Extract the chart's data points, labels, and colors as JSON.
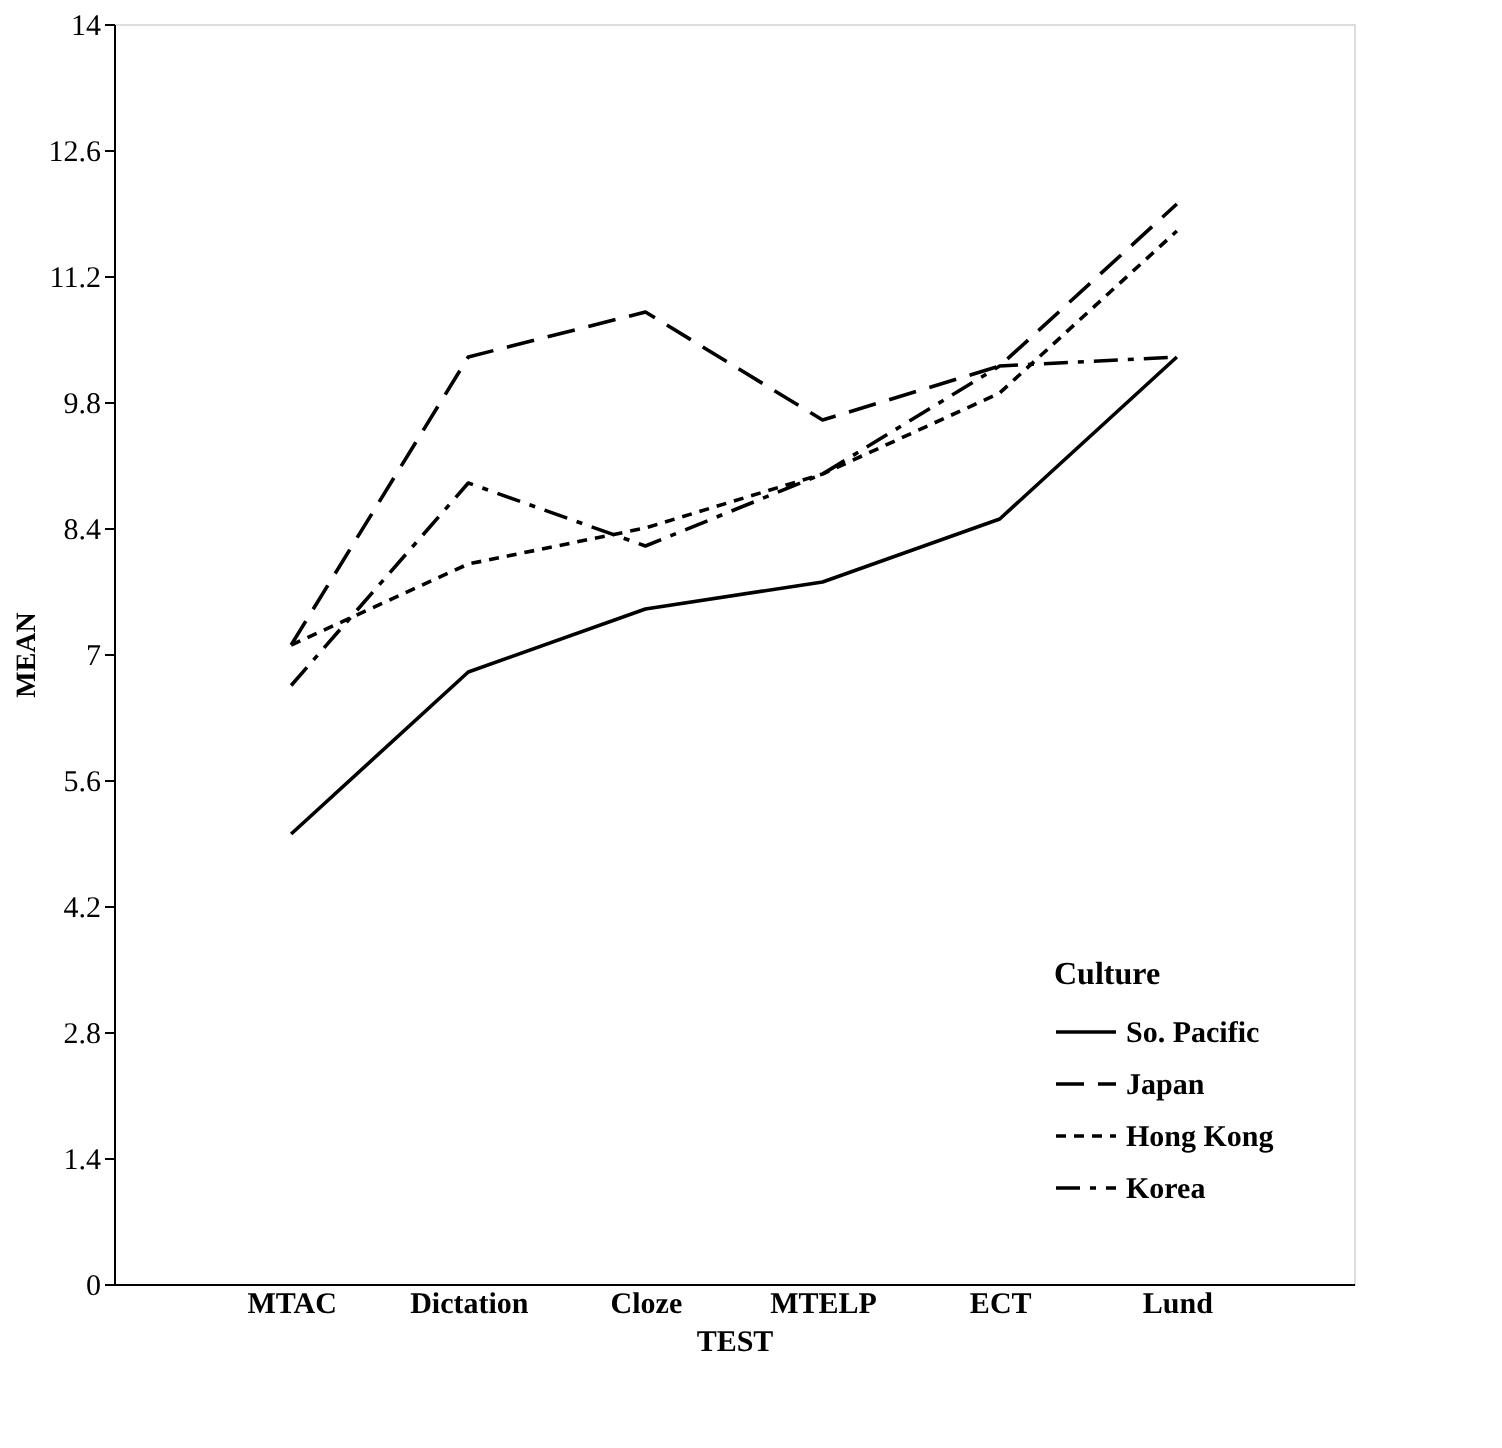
{
  "chart_data": {
    "type": "line",
    "xlabel": "TEST",
    "ylabel": "MEAN",
    "legend_title": "Culture",
    "categories": [
      "MTAC",
      "Dictation",
      "Cloze",
      "MTELP",
      "ECT",
      "Lund"
    ],
    "ylim": [
      0,
      14
    ],
    "yticks": [
      0,
      1.4,
      2.8,
      4.2,
      5.6,
      7,
      8.4,
      9.8,
      11.2,
      12.6,
      14
    ],
    "grid": false,
    "legend": "bottom right",
    "marker": "none",
    "series": [
      {
        "name": "So. Pacific",
        "color": "#000000",
        "line_style": "solid",
        "values": [
          5.0,
          6.8,
          7.5,
          7.8,
          8.5,
          10.3
        ]
      },
      {
        "name": "Japan",
        "color": "#000000",
        "line_style": "dashed",
        "values": [
          7.1,
          10.3,
          10.8,
          9.6,
          10.2,
          12.0
        ]
      },
      {
        "name": "Hong Kong",
        "color": "#000000",
        "line_style": "dotted",
        "values": [
          7.1,
          8.0,
          8.4,
          9.0,
          9.9,
          11.7
        ]
      },
      {
        "name": "Korea",
        "color": "#000000",
        "line_style": "dashdot",
        "values": [
          6.65,
          8.9,
          8.2,
          9.0,
          10.2,
          10.3
        ]
      }
    ]
  }
}
